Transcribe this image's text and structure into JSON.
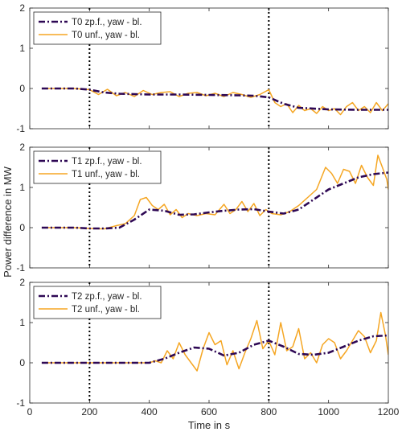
{
  "figure": {
    "xlabel": "Time in s",
    "ylabel": "Power difference in MW"
  },
  "chart_data": [
    {
      "type": "line",
      "xlim": [
        0,
        1200
      ],
      "ylim": [
        -1,
        2
      ],
      "xticks": [
        0,
        200,
        400,
        600,
        800,
        1000,
        1200
      ],
      "yticks": [
        -1,
        0,
        1,
        2
      ],
      "show_xtick_labels": false,
      "grid": false,
      "legend_position": "top-left",
      "vlines": [
        200,
        800
      ],
      "colors": {
        "zp": "#2e0854",
        "unf": "#f5a623",
        "vline": "#000000"
      },
      "series": [
        {
          "name": "T0 zp.f., yaw - bl.",
          "style": "dash-dot",
          "x": [
            40,
            100,
            150,
            200,
            250,
            300,
            400,
            500,
            600,
            700,
            750,
            800,
            850,
            900,
            1000,
            1100,
            1200
          ],
          "y": [
            0,
            0,
            0,
            -0.03,
            -0.1,
            -0.13,
            -0.15,
            -0.15,
            -0.16,
            -0.17,
            -0.18,
            -0.22,
            -0.38,
            -0.48,
            -0.52,
            -0.53,
            -0.53
          ]
        },
        {
          "name": "T0 unf., yaw - bl.",
          "style": "solid",
          "x": [
            40,
            100,
            150,
            200,
            230,
            260,
            290,
            320,
            350,
            380,
            410,
            440,
            470,
            500,
            530,
            560,
            590,
            620,
            650,
            680,
            710,
            740,
            770,
            800,
            820,
            840,
            860,
            880,
            900,
            920,
            940,
            960,
            980,
            1000,
            1020,
            1040,
            1060,
            1080,
            1100,
            1120,
            1140,
            1160,
            1180,
            1200
          ],
          "y": [
            0,
            0,
            0,
            -0.03,
            -0.15,
            -0.02,
            -0.18,
            -0.1,
            -0.2,
            -0.05,
            -0.15,
            -0.1,
            -0.08,
            -0.2,
            -0.12,
            -0.1,
            -0.18,
            -0.12,
            -0.2,
            -0.1,
            -0.15,
            -0.22,
            -0.15,
            -0.03,
            -0.35,
            -0.45,
            -0.38,
            -0.6,
            -0.42,
            -0.55,
            -0.5,
            -0.62,
            -0.45,
            -0.55,
            -0.5,
            -0.65,
            -0.45,
            -0.35,
            -0.55,
            -0.45,
            -0.6,
            -0.35,
            -0.55,
            -0.38
          ]
        }
      ]
    },
    {
      "type": "line",
      "xlim": [
        0,
        1200
      ],
      "ylim": [
        -1,
        2
      ],
      "xticks": [
        0,
        200,
        400,
        600,
        800,
        1000,
        1200
      ],
      "yticks": [
        -1,
        0,
        1,
        2
      ],
      "show_xtick_labels": false,
      "grid": false,
      "legend_position": "top-left",
      "vlines": [
        200,
        800
      ],
      "colors": {
        "zp": "#2e0854",
        "unf": "#f5a623",
        "vline": "#000000"
      },
      "series": [
        {
          "name": "T1 zp.f., yaw - bl.",
          "style": "dash-dot",
          "x": [
            40,
            100,
            150,
            200,
            250,
            300,
            350,
            400,
            450,
            500,
            550,
            600,
            650,
            700,
            750,
            800,
            850,
            900,
            950,
            1000,
            1050,
            1100,
            1150,
            1200
          ],
          "y": [
            0,
            0,
            0,
            -0.02,
            -0.02,
            0,
            0.2,
            0.45,
            0.42,
            0.32,
            0.33,
            0.38,
            0.42,
            0.45,
            0.46,
            0.4,
            0.35,
            0.45,
            0.7,
            0.95,
            1.1,
            1.25,
            1.33,
            1.37
          ]
        },
        {
          "name": "T1 unf., yaw - bl.",
          "style": "solid",
          "x": [
            40,
            100,
            150,
            200,
            250,
            290,
            320,
            350,
            370,
            390,
            410,
            430,
            450,
            470,
            490,
            510,
            530,
            560,
            590,
            620,
            650,
            670,
            690,
            710,
            730,
            750,
            770,
            790,
            810,
            840,
            870,
            900,
            930,
            960,
            990,
            1010,
            1030,
            1050,
            1070,
            1090,
            1110,
            1130,
            1150,
            1165,
            1180,
            1195,
            1200
          ],
          "y": [
            0,
            0,
            0,
            -0.02,
            -0.03,
            0.05,
            0.1,
            0.3,
            0.7,
            0.75,
            0.55,
            0.45,
            0.58,
            0.32,
            0.45,
            0.25,
            0.35,
            0.3,
            0.35,
            0.32,
            0.58,
            0.35,
            0.45,
            0.65,
            0.4,
            0.6,
            0.3,
            0.45,
            0.35,
            0.32,
            0.4,
            0.55,
            0.75,
            0.95,
            1.5,
            1.35,
            1.1,
            1.45,
            1.4,
            1.1,
            1.55,
            1.25,
            1.05,
            1.8,
            1.5,
            1.2,
            0.95
          ]
        }
      ]
    },
    {
      "type": "line",
      "xlim": [
        0,
        1200
      ],
      "ylim": [
        -1,
        2
      ],
      "xticks": [
        0,
        200,
        400,
        600,
        800,
        1000,
        1200
      ],
      "yticks": [
        -1,
        0,
        1,
        2
      ],
      "show_xtick_labels": true,
      "grid": false,
      "legend_position": "top-left",
      "vlines": [
        200,
        800
      ],
      "colors": {
        "zp": "#2e0854",
        "unf": "#f5a623",
        "vline": "#000000"
      },
      "series": [
        {
          "name": "T2 zp.f., yaw - bl.",
          "style": "dash-dot",
          "x": [
            40,
            100,
            150,
            200,
            250,
            300,
            350,
            400,
            450,
            500,
            550,
            600,
            650,
            700,
            750,
            800,
            850,
            900,
            950,
            1000,
            1050,
            1100,
            1150,
            1200
          ],
          "y": [
            0,
            0,
            0,
            0,
            0,
            0,
            0,
            0,
            0.1,
            0.25,
            0.38,
            0.35,
            0.18,
            0.25,
            0.45,
            0.55,
            0.4,
            0.22,
            0.2,
            0.25,
            0.4,
            0.55,
            0.66,
            0.68
          ]
        },
        {
          "name": "T2 unf., yaw - bl.",
          "style": "solid",
          "x": [
            40,
            100,
            150,
            200,
            250,
            300,
            350,
            400,
            420,
            440,
            460,
            480,
            500,
            520,
            540,
            560,
            580,
            600,
            620,
            640,
            660,
            680,
            700,
            720,
            740,
            760,
            780,
            800,
            820,
            840,
            860,
            880,
            900,
            920,
            940,
            960,
            980,
            1000,
            1020,
            1040,
            1060,
            1080,
            1100,
            1120,
            1140,
            1160,
            1175,
            1190,
            1200
          ],
          "y": [
            0,
            0,
            0,
            0,
            0,
            0,
            0,
            0,
            0.05,
            0.0,
            0.3,
            0.1,
            0.5,
            0.2,
            0.0,
            -0.2,
            0.35,
            0.75,
            0.45,
            0.55,
            -0.05,
            0.3,
            -0.15,
            0.25,
            0.6,
            1.05,
            0.35,
            0.55,
            0.2,
            1.0,
            0.3,
            0.4,
            0.85,
            0.1,
            0.25,
            0.0,
            0.45,
            0.6,
            0.5,
            0.1,
            0.3,
            0.55,
            0.8,
            0.65,
            0.25,
            0.55,
            1.25,
            0.7,
            0.2
          ]
        }
      ]
    }
  ]
}
